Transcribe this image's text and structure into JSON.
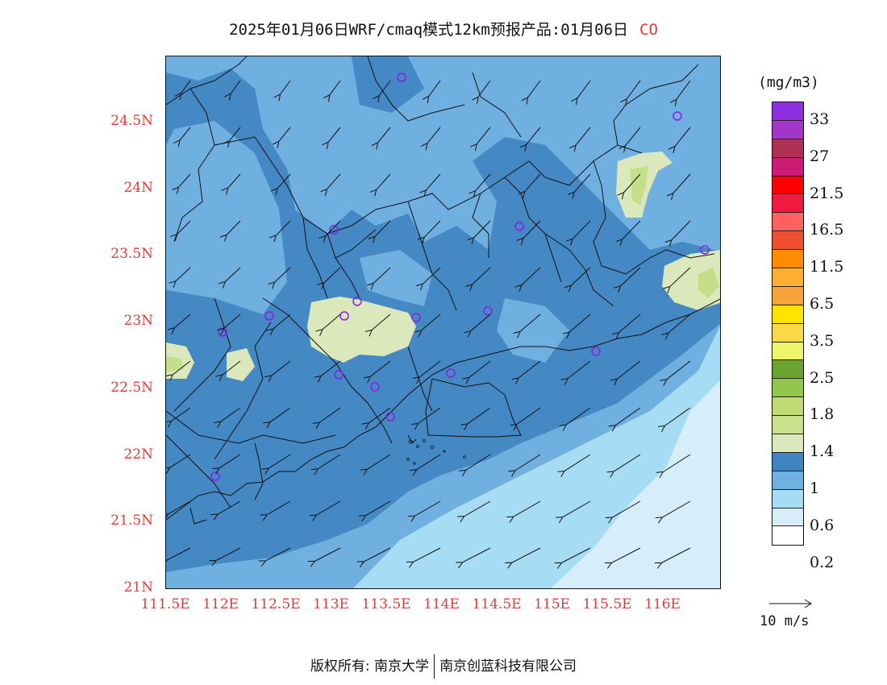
{
  "title": {
    "main": "2025年01月06日WRF/cmaq模式12km预报产品:01月06日",
    "species": "CO"
  },
  "map": {
    "lat_labels": [
      "24.5N",
      "24N",
      "23.5N",
      "23N",
      "22.5N",
      "22N",
      "21.5N",
      "21N"
    ],
    "lat_values": [
      24.5,
      24,
      23.5,
      23,
      22.5,
      22,
      21.5,
      21
    ],
    "lon_labels": [
      "111.5E",
      "112E",
      "112.5E",
      "113E",
      "113.5E",
      "114E",
      "114.5E",
      "115E",
      "115.5E",
      "116E"
    ],
    "lon_values": [
      111.5,
      112,
      112.5,
      113,
      113.5,
      114,
      114.5,
      115,
      115.5,
      116
    ],
    "wind_direction": "northeasterly",
    "colors": {
      "ocean_light": "#d6eefa",
      "ocean_mid": "#a7dcf5",
      "band_06": "#6fb0e0",
      "band_1": "#4488c4",
      "band_12": "#dbe8bc",
      "band_14": "#c4df88"
    }
  },
  "legend": {
    "unit": "(mg/m3)",
    "labels": [
      "33",
      "27",
      "21.5",
      "16.5",
      "11.5",
      "6.5",
      "3.5",
      "2.5",
      "1.8",
      "1.4",
      "1",
      "0.6",
      "0.2"
    ],
    "colors": [
      "#8e2fe0",
      "#a136c8",
      "#b03055",
      "#cc1a75",
      "#ff0000",
      "#f01a40",
      "#ff6060",
      "#ee5030",
      "#ff8c00",
      "#ffb030",
      "#f7a33a",
      "#ffe400",
      "#f9d948",
      "#eef56a",
      "#6aa42e",
      "#92c84a",
      "#bfdd74",
      "#c9e08e",
      "#dbe8bc",
      "#3e84c1",
      "#6fb0e0",
      "#a7dcf5",
      "#d6eefa",
      "#ffffff"
    ]
  },
  "vector": {
    "label": "10 m/s"
  },
  "footer": {
    "left": "版权所有: 南京大学",
    "right": "南京创蓝科技有限公司"
  }
}
